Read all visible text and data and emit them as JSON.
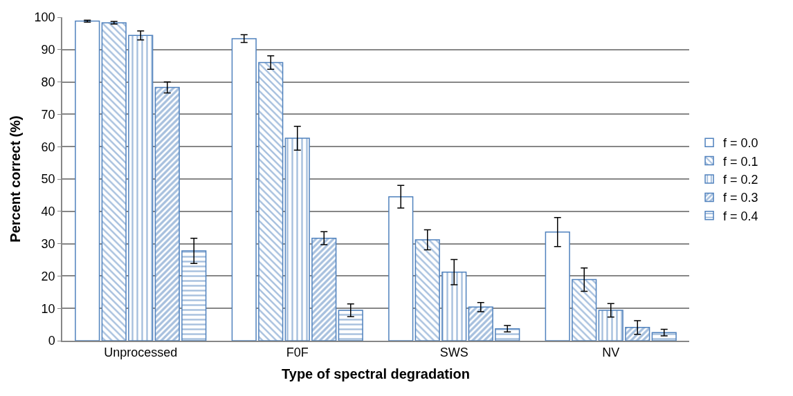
{
  "chart_data": {
    "type": "bar",
    "xlabel": "Type of spectral degradation",
    "ylabel": "Percent correct (%)",
    "categories": [
      "Unprocessed",
      "F0F",
      "SWS",
      "NV"
    ],
    "series": [
      {
        "name": "f = 0.0",
        "color": "#4f81bd",
        "values": [
          98.8,
          93.4,
          44.5,
          33.6
        ],
        "errors": [
          0.3,
          1.2,
          3.5,
          4.5
        ]
      },
      {
        "name": "f = 0.1",
        "color": "#4f81bd",
        "values": [
          98.3,
          86.0,
          31.2,
          18.9
        ],
        "errors": [
          0.4,
          2.1,
          3.1,
          3.6
        ]
      },
      {
        "name": "f = 0.2",
        "color": "#4f81bd",
        "values": [
          94.4,
          62.6,
          21.2,
          9.4
        ],
        "errors": [
          1.4,
          3.7,
          3.9,
          2.1
        ]
      },
      {
        "name": "f = 0.3",
        "color": "#4f81bd",
        "values": [
          78.3,
          31.7,
          10.4,
          4.1
        ],
        "errors": [
          1.7,
          2.0,
          1.4,
          2.1
        ]
      },
      {
        "name": "f = 0.4",
        "color": "#4f81bd",
        "values": [
          27.8,
          9.4,
          3.7,
          2.5
        ],
        "errors": [
          3.9,
          2.0,
          1.0,
          1.0
        ]
      }
    ],
    "ylim": [
      0,
      100
    ],
    "yticks": [
      0,
      10,
      20,
      30,
      40,
      50,
      60,
      70,
      80,
      90,
      100
    ],
    "grid": "y",
    "legend": "right"
  }
}
